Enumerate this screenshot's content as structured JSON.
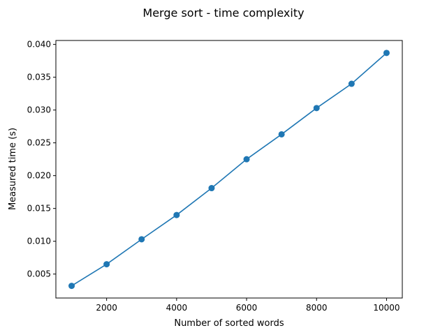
{
  "figure": {
    "title": "Merge sort - time complexity"
  },
  "chart_data": {
    "type": "line",
    "title": "Merge sort - time complexity",
    "xlabel": "Number of sorted words",
    "ylabel": "Measured time (s)",
    "xlim": [
      550,
      10450
    ],
    "ylim": [
      0.00135,
      0.0406
    ],
    "xticks": [
      2000,
      4000,
      6000,
      8000,
      10000
    ],
    "xtick_labels": [
      "2000",
      "4000",
      "6000",
      "8000",
      "10000"
    ],
    "yticks": [
      0.005,
      0.01,
      0.015,
      0.02,
      0.025,
      0.03,
      0.035,
      0.04
    ],
    "ytick_labels": [
      "0.005",
      "0.010",
      "0.015",
      "0.020",
      "0.025",
      "0.030",
      "0.035",
      "0.040"
    ],
    "grid": false,
    "marker": "circle",
    "color": "#1f77b4",
    "series": [
      {
        "x": [
          1000,
          2000,
          3000,
          4000,
          5000,
          6000,
          7000,
          8000,
          9000,
          10000
        ],
        "values": [
          0.0032,
          0.0065,
          0.0103,
          0.014,
          0.0181,
          0.0225,
          0.0263,
          0.0303,
          0.034,
          0.0387
        ]
      }
    ]
  }
}
